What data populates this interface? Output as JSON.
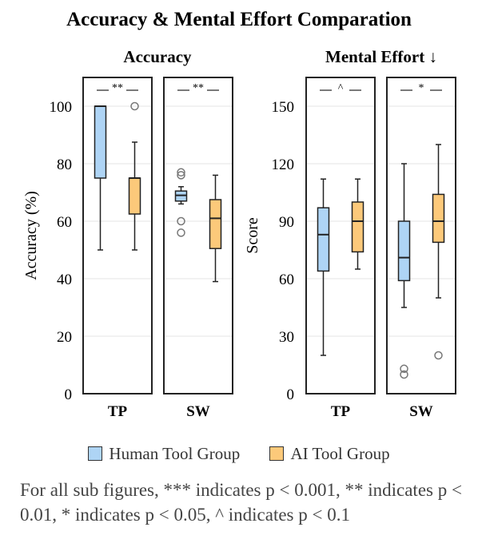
{
  "title": "Accuracy & Mental Effort Comparation",
  "colors": {
    "human": "#aed4f5",
    "ai": "#fcc97a",
    "stroke": "#222222",
    "outlier": "#777777",
    "grid": "#e6e6e6"
  },
  "legend": [
    {
      "label": "Human Tool Group",
      "color": "#aed4f5"
    },
    {
      "label": "AI Tool Group",
      "color": "#fcc97a"
    }
  ],
  "footnote": "For all sub figures, *** indicates p < 0.001, ** indicates p < 0.01, * indicates p < 0.05, ^ indicates p < 0.1",
  "chart_data": [
    {
      "type": "box",
      "title": "Accuracy",
      "ylabel": "Accuracy (%)",
      "ylim": [
        0,
        110
      ],
      "yticks": [
        0,
        20,
        40,
        60,
        80,
        100
      ],
      "grid": true,
      "panels": [
        {
          "category": "TP",
          "significance": "**",
          "boxes": [
            {
              "group": "Human Tool Group",
              "min": 50,
              "q1": 75,
              "median": 100,
              "q3": 100,
              "max": 100,
              "outliers": []
            },
            {
              "group": "AI Tool Group",
              "min": 50,
              "q1": 62.5,
              "median": 75,
              "q3": 75,
              "max": 87.5,
              "outliers": [
                100
              ]
            }
          ]
        },
        {
          "category": "SW",
          "significance": "**",
          "boxes": [
            {
              "group": "Human Tool Group",
              "min": 66,
              "q1": 67,
              "median": 69,
              "q3": 70.5,
              "max": 72,
              "outliers": [
                77,
                76,
                60,
                56
              ]
            },
            {
              "group": "AI Tool Group",
              "min": 39,
              "q1": 50.5,
              "median": 61,
              "q3": 67.5,
              "max": 76,
              "outliers": []
            }
          ]
        }
      ]
    },
    {
      "type": "box",
      "title": "Mental Effort ↓",
      "ylabel": "Score",
      "ylim": [
        0,
        165
      ],
      "yticks": [
        0,
        30,
        60,
        90,
        120,
        150
      ],
      "grid": true,
      "panels": [
        {
          "category": "TP",
          "significance": "^",
          "boxes": [
            {
              "group": "Human Tool Group",
              "min": 20,
              "q1": 64,
              "median": 83,
              "q3": 97,
              "max": 112,
              "outliers": []
            },
            {
              "group": "AI Tool Group",
              "min": 65,
              "q1": 74,
              "median": 90,
              "q3": 100,
              "max": 112,
              "outliers": []
            }
          ]
        },
        {
          "category": "SW",
          "significance": "*",
          "boxes": [
            {
              "group": "Human Tool Group",
              "min": 45,
              "q1": 59,
              "median": 71,
              "q3": 90,
              "max": 120,
              "outliers": [
                13,
                10
              ]
            },
            {
              "group": "AI Tool Group",
              "min": 50,
              "q1": 79,
              "median": 90,
              "q3": 104,
              "max": 130,
              "outliers": [
                20
              ]
            }
          ]
        }
      ]
    }
  ]
}
